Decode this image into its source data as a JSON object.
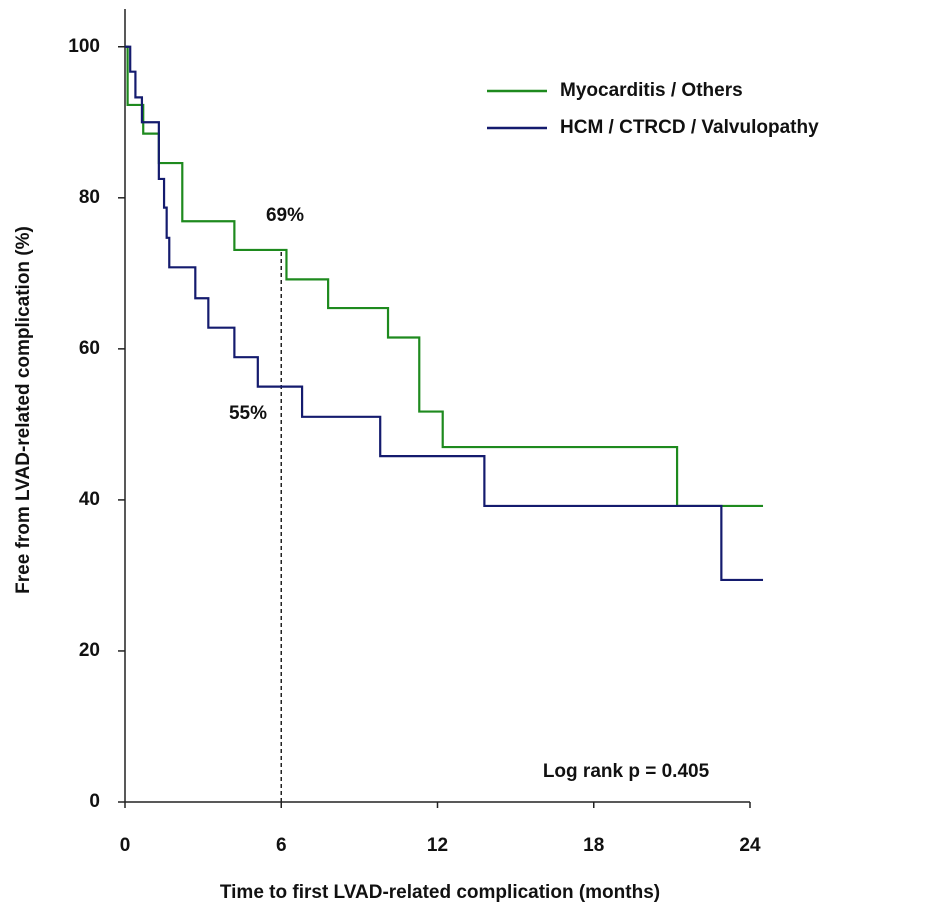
{
  "chart_data": {
    "type": "line",
    "step": true,
    "x_label": "Time to first LVAD-related complication (months)",
    "y_label": "Free from LVAD-related complication (%)",
    "xlim": [
      0,
      24
    ],
    "xticks": [
      0,
      6,
      12,
      18,
      24
    ],
    "ylim": [
      0,
      105
    ],
    "yticks": [
      0,
      20,
      40,
      60,
      80,
      100
    ],
    "legend": "top-right",
    "series": [
      {
        "name": "Myocarditis / Others",
        "color": "#1e8a1e",
        "x": [
          0,
          0.1,
          0.7,
          1.3,
          2.2,
          4.2,
          6.2,
          7.8,
          10.1,
          11.3,
          12.2,
          21.2,
          24.5
        ],
        "values": [
          100,
          92.3,
          88.5,
          84.6,
          76.9,
          73.1,
          69.2,
          65.4,
          61.5,
          51.7,
          47.0,
          39.2,
          39.2
        ]
      },
      {
        "name": "HCM / CTRCD / Valvulopathy",
        "color": "#141b6e",
        "x": [
          0,
          0.2,
          0.4,
          0.65,
          1.3,
          1.5,
          1.6,
          1.7,
          2.7,
          3.2,
          4.2,
          5.1,
          6.8,
          9.8,
          13.8,
          22.9,
          24.5
        ],
        "values": [
          100,
          96.7,
          93.3,
          90.0,
          82.5,
          78.7,
          74.7,
          70.8,
          66.7,
          62.8,
          58.9,
          55.0,
          51.0,
          45.8,
          39.2,
          29.4,
          29.4
        ]
      }
    ],
    "reference_x": 6,
    "annotations": [
      "69%",
      "55%",
      "Log rank p = 0.405"
    ]
  }
}
